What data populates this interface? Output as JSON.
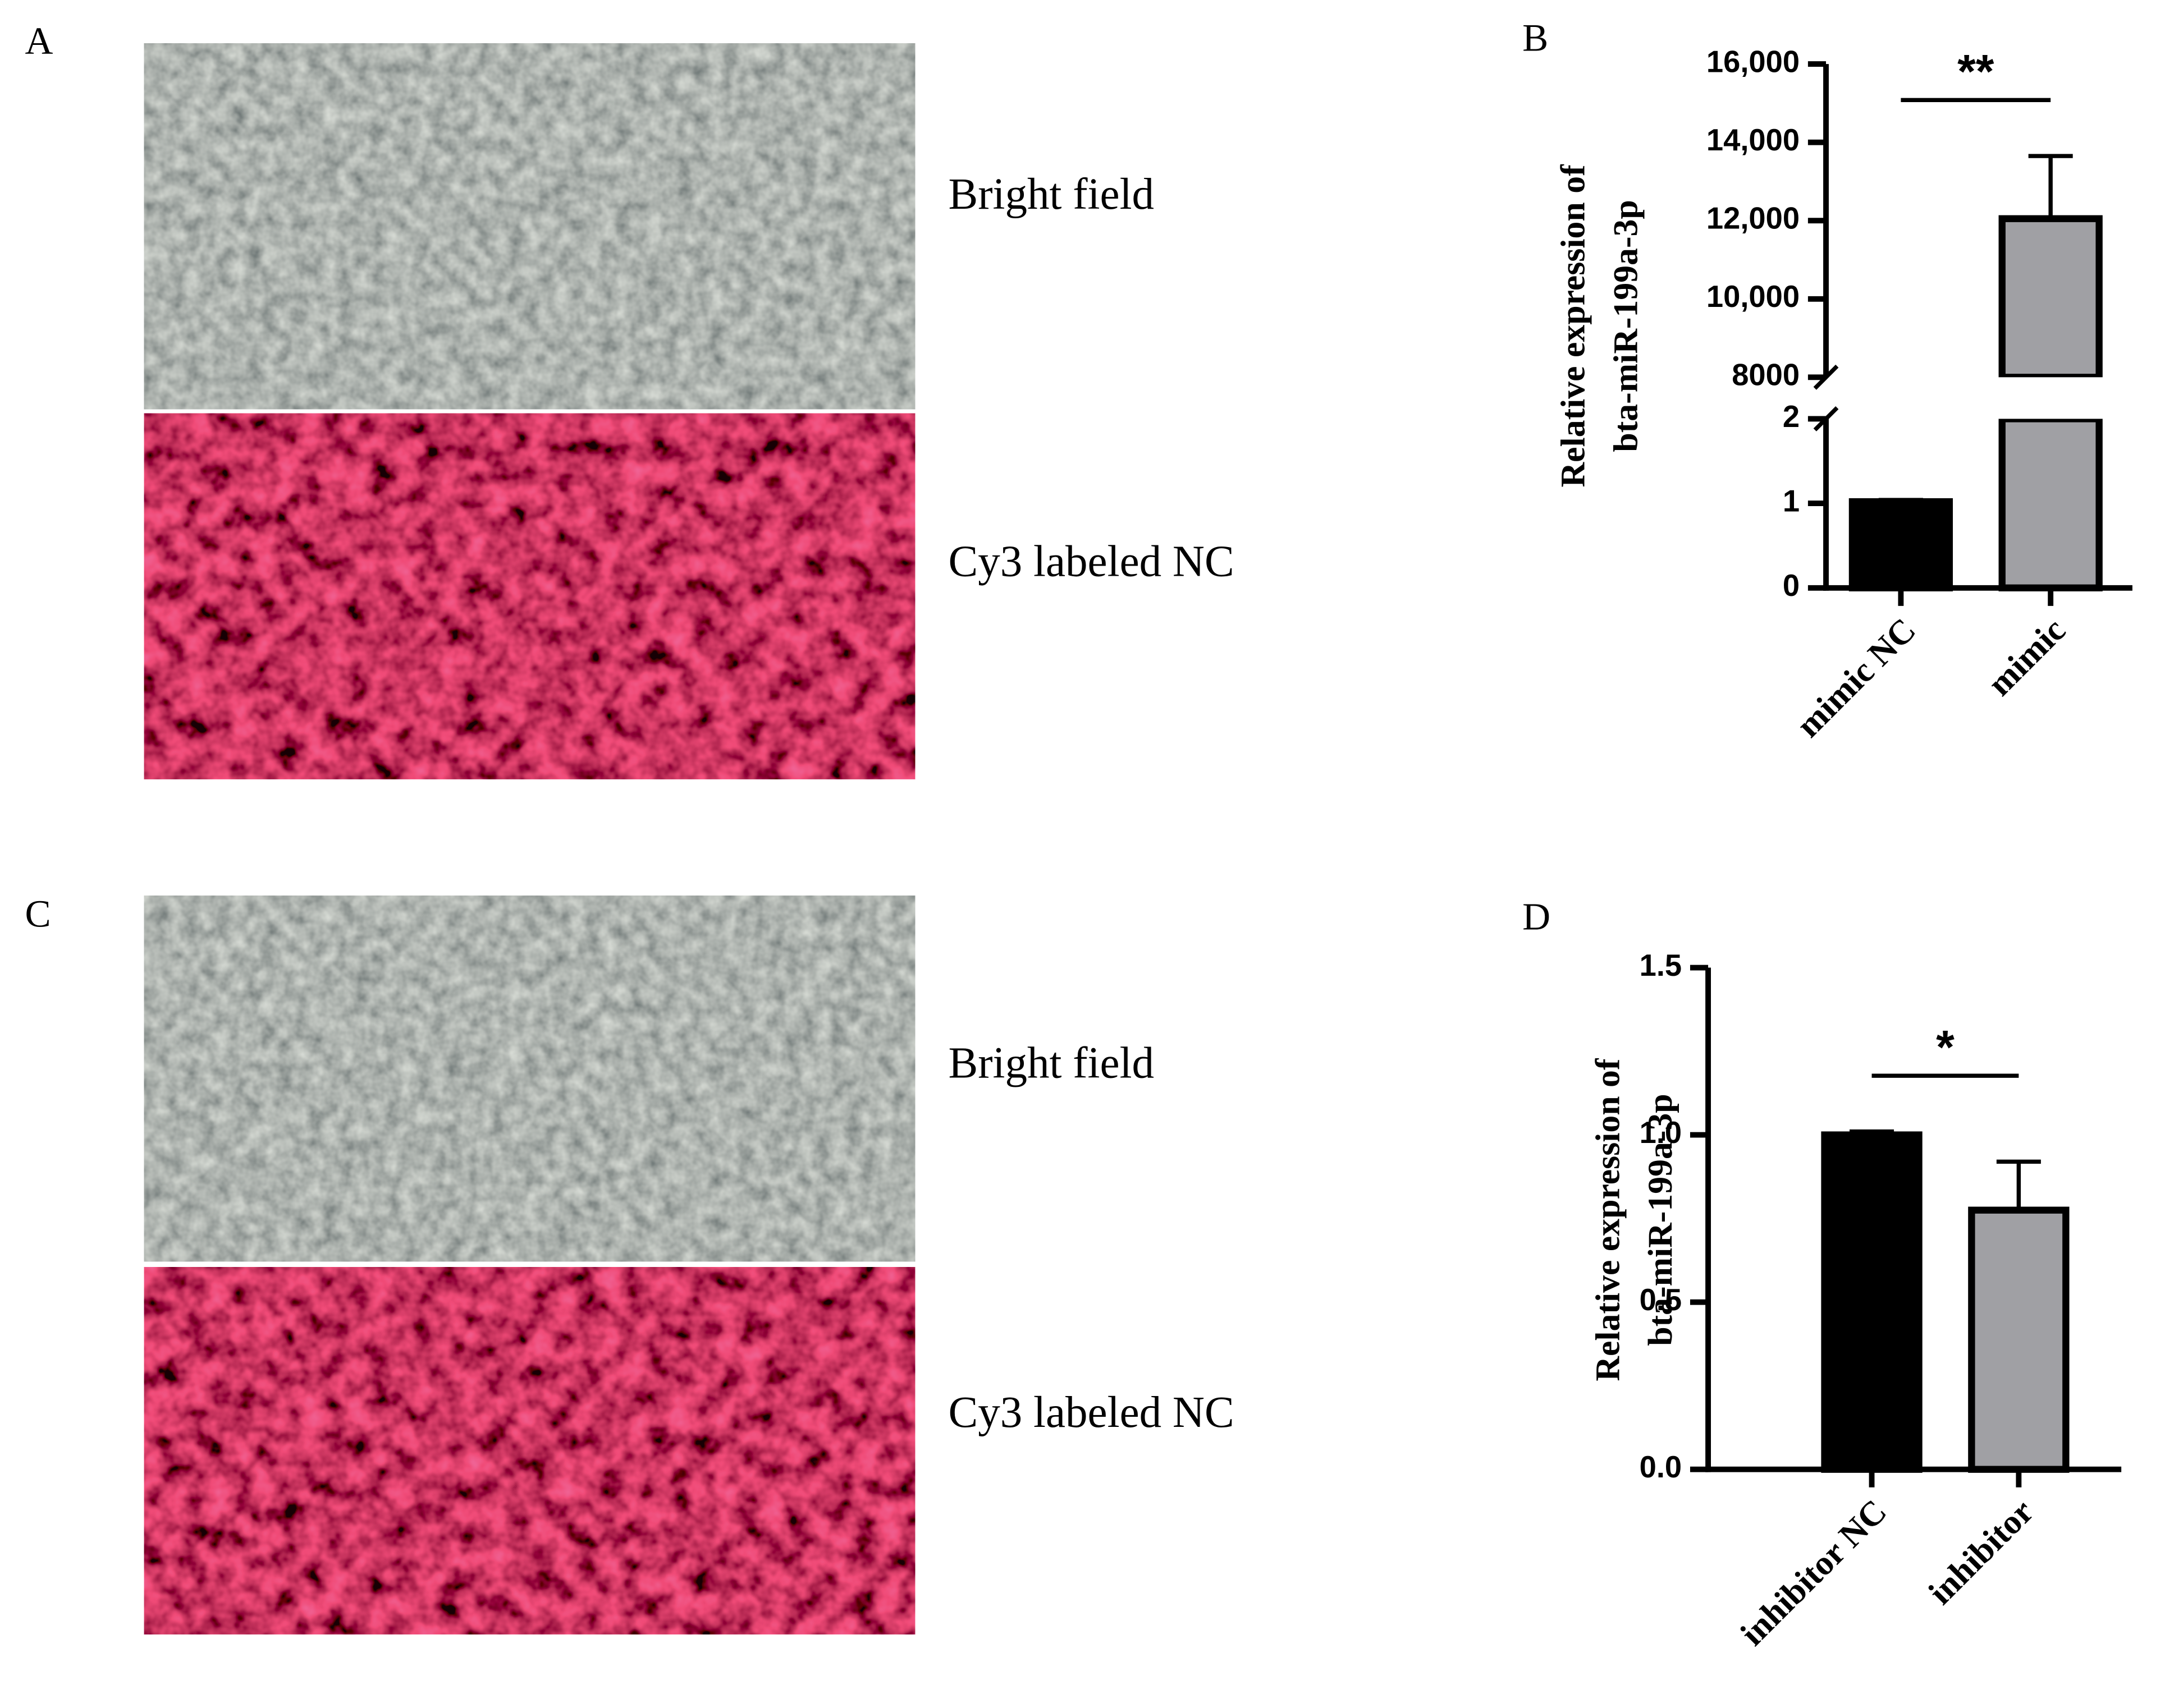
{
  "panels": [
    {
      "label": "A",
      "images": [
        {
          "caption": "Bright field"
        },
        {
          "caption": "Cy3 labeled NC"
        }
      ]
    },
    {
      "label": "C",
      "images": [
        {
          "caption": "Bright field"
        },
        {
          "caption": "Cy3 labeled NC"
        }
      ]
    }
  ],
  "chart_data": [
    {
      "type": "bar",
      "label": "B",
      "ylabel": [
        "Relative expression of",
        "bta-miR-199a-3p"
      ],
      "categories": [
        "mimic NC",
        "mimic"
      ],
      "values": [
        1.02,
        12050
      ],
      "errors": [
        0.02,
        1600
      ],
      "colors": [
        "#000000",
        "#a0a0a4"
      ],
      "significance": "**",
      "ylim": [
        0,
        16000
      ],
      "axis_break": [
        2,
        8000
      ],
      "yticks": [
        0,
        1,
        2,
        8000,
        {
          "value": 10000,
          "label": "10,000"
        },
        {
          "value": 12000,
          "label": "12,000"
        },
        {
          "value": 14000,
          "label": "14,000"
        },
        {
          "value": 16000,
          "label": "16,000"
        }
      ]
    },
    {
      "type": "bar",
      "label": "D",
      "ylabel": [
        "Relative expression of",
        "bta-miR-199a-3p"
      ],
      "categories": [
        "inhibitor NC",
        "inhibitor"
      ],
      "values": [
        1.0,
        0.775
      ],
      "errors": [
        0.01,
        0.145
      ],
      "colors": [
        "#000000",
        "#a0a0a4"
      ],
      "significance": "*",
      "ylim": [
        0,
        1.5
      ],
      "yticks": [
        {
          "value": 0,
          "label": "0.0"
        },
        0.5,
        {
          "value": 1,
          "label": "1.0"
        },
        1.5
      ]
    }
  ]
}
